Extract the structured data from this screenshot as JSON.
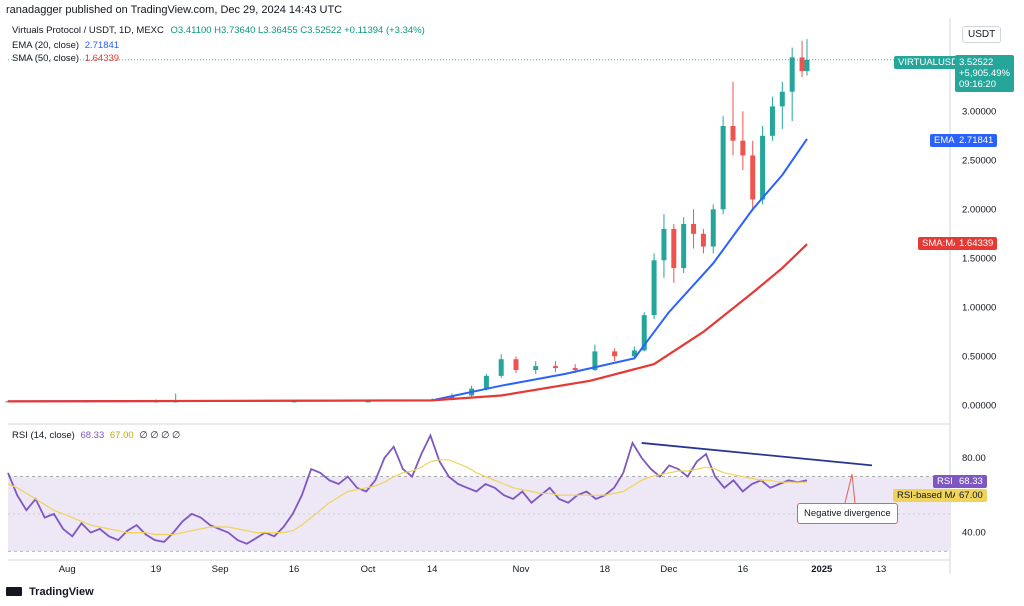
{
  "header": {
    "publisher_line": "ranadagger published on TradingView.com, Dec 29, 2024 14:43 UTC"
  },
  "legend": {
    "title": "Virtuals Protocol / USDT, 1D, MEXC",
    "ohlc": "O3.41100 H3.73640 L3.36455 C3.52522 +0.11394 (+3.34%)",
    "ema": {
      "label": "EMA (20, close)",
      "value": "2.71841",
      "color": "#2962ff"
    },
    "sma": {
      "label": "SMA (50, close)",
      "value": "1.64339",
      "color": "#e53935"
    },
    "rsi": {
      "label": "RSI (14, close)",
      "v1": "68.33",
      "v2": "67.00",
      "rest": "∅ ∅ ∅ ∅"
    }
  },
  "axis": {
    "unit": "USDT",
    "price_ticks": [
      "3.00000",
      "2.50000",
      "2.00000",
      "1.50000",
      "1.00000",
      "0.50000",
      "0.00000"
    ],
    "rsi_ticks": [
      "80.00",
      "40.00"
    ],
    "x_ticks": [
      "Aug",
      "19",
      "Sep",
      "16",
      "Oct",
      "14",
      "Nov",
      "18",
      "Dec",
      "16",
      "2025",
      "13"
    ]
  },
  "price_tags": {
    "symbol": "VIRTUALUSDT",
    "last": "3.52522",
    "change": "+5,905.49%",
    "countdown": "09:16:20",
    "ema_label": "EMA",
    "ema_value": "2.71841",
    "sma_label": "SMA:MA",
    "sma_value": "1.64339",
    "rsi_label": "RSI",
    "rsi_value": "68.33",
    "rsima_label": "RSI-based MA",
    "rsima_value": "67.00"
  },
  "annotation": {
    "text": "Negative divergence"
  },
  "footer": {
    "brand": "TradingView"
  },
  "colors": {
    "up": "#26a69a",
    "down": "#ef5350",
    "ema": "#2962ff",
    "sma": "#e53935",
    "rsi": "#7e57c2",
    "rsi_ma": "#f0d35a",
    "trendline": "#283593",
    "rsi_band": "#ede7f6"
  },
  "chart_data": [
    {
      "type": "candlestick",
      "title": "Virtuals Protocol / USDT, 1D, MEXC",
      "ylim": [
        -0.15,
        3.85
      ],
      "candles_note": "daily OHLC estimated from chart",
      "candles": [
        {
          "d": "2024-07-20",
          "o": 0.04,
          "h": 0.05,
          "l": 0.03,
          "c": 0.04
        },
        {
          "d": "2024-08-05",
          "o": 0.04,
          "h": 0.05,
          "l": 0.03,
          "c": 0.04
        },
        {
          "d": "2024-08-19",
          "o": 0.04,
          "h": 0.06,
          "l": 0.03,
          "c": 0.04
        },
        {
          "d": "2024-08-23",
          "o": 0.04,
          "h": 0.12,
          "l": 0.03,
          "c": 0.04
        },
        {
          "d": "2024-09-16",
          "o": 0.04,
          "h": 0.05,
          "l": 0.03,
          "c": 0.04
        },
        {
          "d": "2024-10-01",
          "o": 0.04,
          "h": 0.05,
          "l": 0.03,
          "c": 0.04
        },
        {
          "d": "2024-10-14",
          "o": 0.05,
          "h": 0.07,
          "l": 0.04,
          "c": 0.06
        },
        {
          "d": "2024-10-18",
          "o": 0.06,
          "h": 0.12,
          "l": 0.05,
          "c": 0.1
        },
        {
          "d": "2024-10-22",
          "o": 0.1,
          "h": 0.2,
          "l": 0.09,
          "c": 0.17
        },
        {
          "d": "2024-10-25",
          "o": 0.17,
          "h": 0.32,
          "l": 0.15,
          "c": 0.3
        },
        {
          "d": "2024-10-28",
          "o": 0.3,
          "h": 0.52,
          "l": 0.28,
          "c": 0.47
        },
        {
          "d": "2024-10-31",
          "o": 0.47,
          "h": 0.5,
          "l": 0.33,
          "c": 0.36
        },
        {
          "d": "2024-11-04",
          "o": 0.36,
          "h": 0.45,
          "l": 0.32,
          "c": 0.4
        },
        {
          "d": "2024-11-08",
          "o": 0.4,
          "h": 0.45,
          "l": 0.34,
          "c": 0.38
        },
        {
          "d": "2024-11-12",
          "o": 0.38,
          "h": 0.42,
          "l": 0.33,
          "c": 0.36
        },
        {
          "d": "2024-11-16",
          "o": 0.36,
          "h": 0.62,
          "l": 0.35,
          "c": 0.55
        },
        {
          "d": "2024-11-20",
          "o": 0.55,
          "h": 0.58,
          "l": 0.45,
          "c": 0.5
        },
        {
          "d": "2024-11-24",
          "o": 0.5,
          "h": 0.6,
          "l": 0.48,
          "c": 0.56
        },
        {
          "d": "2024-11-26",
          "o": 0.56,
          "h": 0.95,
          "l": 0.55,
          "c": 0.92
        },
        {
          "d": "2024-11-28",
          "o": 0.92,
          "h": 1.55,
          "l": 0.88,
          "c": 1.48
        },
        {
          "d": "2024-11-30",
          "o": 1.48,
          "h": 1.95,
          "l": 1.3,
          "c": 1.8
        },
        {
          "d": "2024-12-02",
          "o": 1.8,
          "h": 1.85,
          "l": 1.25,
          "c": 1.4
        },
        {
          "d": "2024-12-04",
          "o": 1.4,
          "h": 1.92,
          "l": 1.35,
          "c": 1.85
        },
        {
          "d": "2024-12-06",
          "o": 1.85,
          "h": 2.0,
          "l": 1.6,
          "c": 1.75
        },
        {
          "d": "2024-12-08",
          "o": 1.75,
          "h": 1.8,
          "l": 1.55,
          "c": 1.62
        },
        {
          "d": "2024-12-10",
          "o": 1.62,
          "h": 2.05,
          "l": 1.55,
          "c": 2.0
        },
        {
          "d": "2024-12-12",
          "o": 2.0,
          "h": 2.95,
          "l": 1.95,
          "c": 2.85
        },
        {
          "d": "2024-12-14",
          "o": 2.85,
          "h": 3.3,
          "l": 2.55,
          "c": 2.7
        },
        {
          "d": "2024-12-16",
          "o": 2.7,
          "h": 3.0,
          "l": 2.4,
          "c": 2.55
        },
        {
          "d": "2024-12-18",
          "o": 2.55,
          "h": 2.7,
          "l": 1.98,
          "c": 2.1
        },
        {
          "d": "2024-12-20",
          "o": 2.1,
          "h": 2.85,
          "l": 2.05,
          "c": 2.75
        },
        {
          "d": "2024-12-22",
          "o": 2.75,
          "h": 3.15,
          "l": 2.7,
          "c": 3.05
        },
        {
          "d": "2024-12-24",
          "o": 3.05,
          "h": 3.3,
          "l": 2.82,
          "c": 3.2
        },
        {
          "d": "2024-12-26",
          "o": 3.2,
          "h": 3.65,
          "l": 2.9,
          "c": 3.55
        },
        {
          "d": "2024-12-28",
          "o": 3.55,
          "h": 3.72,
          "l": 3.35,
          "c": 3.41
        },
        {
          "d": "2024-12-29",
          "o": 3.41,
          "h": 3.7364,
          "l": 3.36455,
          "c": 3.52522
        }
      ],
      "series": [
        {
          "name": "EMA (20, close)",
          "color": "#2962ff",
          "last": 2.71841
        },
        {
          "name": "SMA (50, close)",
          "color": "#e53935",
          "last": 1.64339
        }
      ]
    },
    {
      "type": "line",
      "title": "RSI (14, close)",
      "ylim": [
        28,
        96
      ],
      "bands": [
        30,
        70
      ],
      "ticks": [
        80,
        40
      ],
      "series": [
        {
          "name": "RSI",
          "color": "#7e57c2",
          "values": [
            72,
            60,
            52,
            58,
            48,
            50,
            42,
            38,
            45,
            40,
            42,
            38,
            36,
            41,
            44,
            39,
            36,
            35,
            40,
            46,
            50,
            48,
            44,
            42,
            40,
            36,
            34,
            37,
            40,
            38,
            43,
            50,
            60,
            74,
            72,
            68,
            66,
            70,
            64,
            62,
            68,
            80,
            86,
            74,
            70,
            82,
            92,
            78,
            70,
            66,
            64,
            62,
            66,
            64,
            60,
            58,
            62,
            56,
            60,
            64,
            58,
            56,
            60,
            62,
            58,
            60,
            64,
            72,
            88,
            80,
            74,
            70,
            76,
            74,
            70,
            78,
            82,
            70,
            64,
            68,
            62,
            66,
            68,
            64,
            66,
            68,
            67,
            68
          ]
        },
        {
          "name": "RSI-based MA",
          "color": "#f0d35a",
          "values": [
            66,
            64,
            61,
            58,
            55,
            52,
            50,
            48,
            46,
            44,
            43,
            42,
            41,
            40,
            40,
            40,
            39,
            39,
            39,
            40,
            41,
            42,
            43,
            43,
            43,
            42,
            41,
            40,
            40,
            40,
            40,
            41,
            44,
            48,
            52,
            56,
            59,
            62,
            63,
            64,
            65,
            67,
            70,
            72,
            73,
            75,
            78,
            79,
            79,
            77,
            75,
            72,
            70,
            68,
            66,
            64,
            63,
            62,
            61,
            61,
            60,
            60,
            60,
            60,
            60,
            60,
            61,
            62,
            65,
            68,
            70,
            71,
            72,
            73,
            73,
            74,
            75,
            74,
            72,
            71,
            70,
            69,
            68,
            68,
            67,
            67,
            67,
            67
          ]
        }
      ],
      "annotations": [
        {
          "type": "trendline",
          "label": "Negative divergence",
          "from_value": 88,
          "to_value": 76
        }
      ]
    }
  ]
}
